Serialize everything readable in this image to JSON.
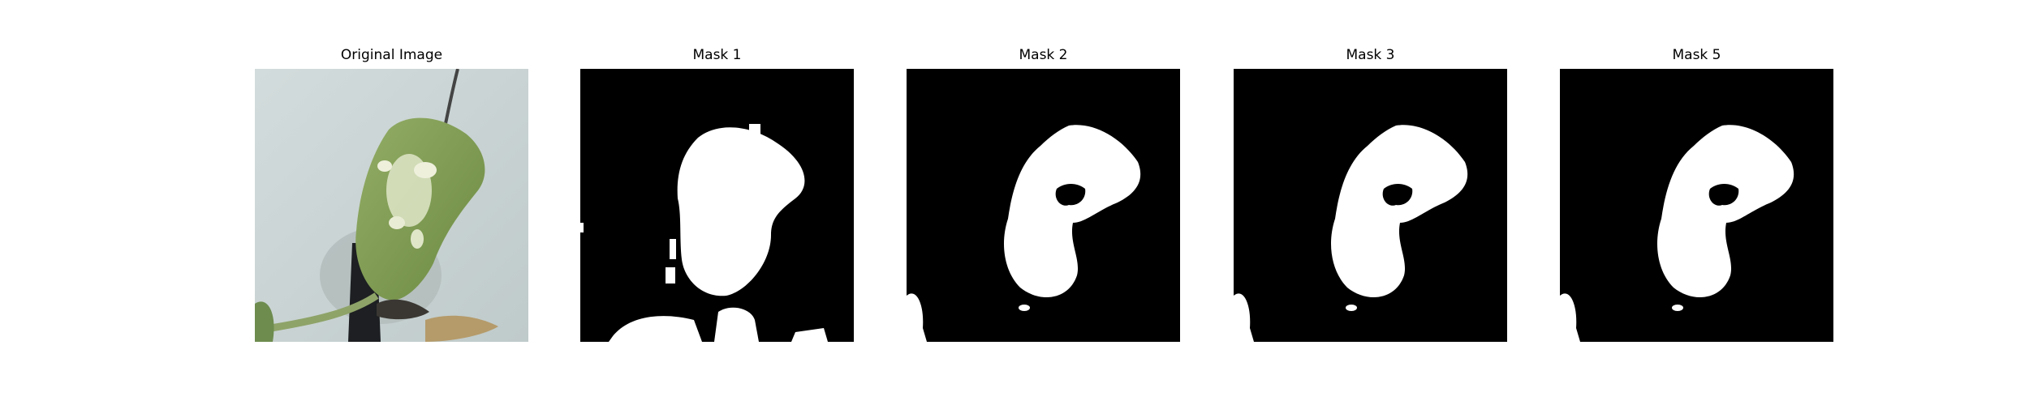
{
  "panels": [
    {
      "title": "Original Image"
    },
    {
      "title": "Mask 1"
    },
    {
      "title": "Mask 2"
    },
    {
      "title": "Mask 3"
    },
    {
      "title": "Mask 5"
    }
  ],
  "colors": {
    "background": "#ffffff",
    "mask_background": "#000000",
    "mask_foreground": "#ffffff",
    "wall": "#c9d3d3",
    "leaf_green": "#7d9a52",
    "leaf_pale": "#dfe6c8"
  }
}
